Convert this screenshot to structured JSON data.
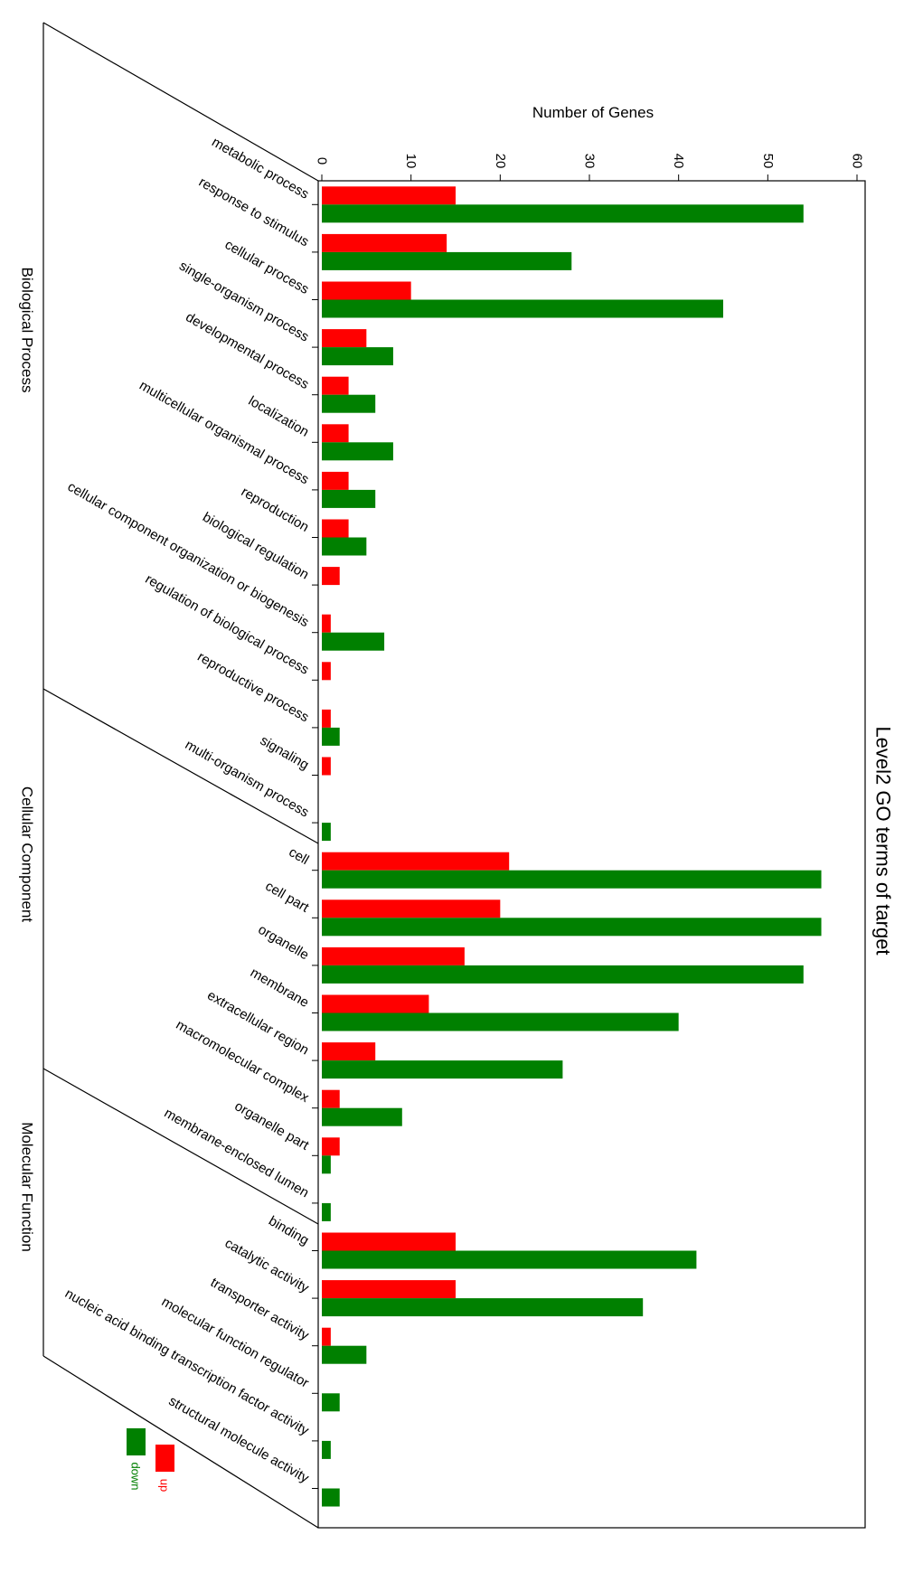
{
  "chart_data": {
    "type": "bar",
    "orientation": "horizontal",
    "title": "Level2 GO terms of target",
    "ylabel": "Number of Genes",
    "xlabel": "",
    "ylim": [
      0,
      60
    ],
    "ticks": [
      0,
      10,
      20,
      30,
      40,
      50,
      60
    ],
    "grid": false,
    "legend_position": "bottom-left",
    "categories": [
      "metabolic process",
      "response to stimulus",
      "cellular process",
      "single-organism process",
      "developmental process",
      "localization",
      "multicellular organismal process",
      "reproduction",
      "biological regulation",
      "cellular component organization or biogenesis",
      "regulation of biological process",
      "reproductive process",
      "signaling",
      "multi-organism process",
      "cell",
      "cell part",
      "organelle",
      "membrane",
      "extracellular region",
      "macromolecular complex",
      "organelle part",
      "membrane-enclosed lumen",
      "binding",
      "catalytic activity",
      "transporter activity",
      "molecular function regulator",
      "nucleic acid binding transcription factor activity",
      "structural molecule activity"
    ],
    "series": [
      {
        "name": "up",
        "color": "#ff0000",
        "values": [
          15,
          14,
          10,
          5,
          3,
          3,
          3,
          3,
          2,
          1,
          1,
          1,
          1,
          0,
          21,
          20,
          16,
          12,
          6,
          2,
          2,
          0,
          15,
          15,
          1,
          0,
          0,
          0
        ]
      },
      {
        "name": "down",
        "color": "#008000",
        "values": [
          54,
          28,
          45,
          8,
          6,
          8,
          6,
          5,
          0,
          7,
          0,
          2,
          0,
          1,
          56,
          56,
          54,
          40,
          27,
          9,
          1,
          1,
          42,
          36,
          5,
          2,
          1,
          2
        ]
      }
    ],
    "groups": [
      {
        "name": "Biological Process",
        "start": 0,
        "end": 13
      },
      {
        "name": "Cellular Component",
        "start": 14,
        "end": 21
      },
      {
        "name": "Molecular Function",
        "start": 22,
        "end": 27
      }
    ]
  }
}
